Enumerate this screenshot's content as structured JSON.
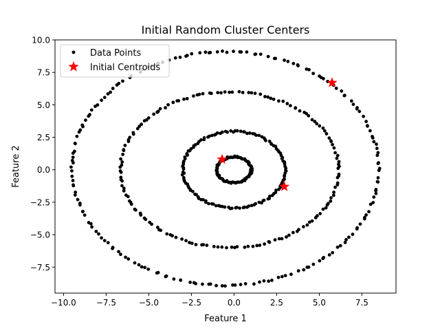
{
  "chart_data": {
    "type": "scatter",
    "title": "Initial Random Cluster Centers",
    "xlabel": "Feature 1",
    "ylabel": "Feature 2",
    "xlim": [
      -10.5,
      9.5
    ],
    "ylim": [
      -9.5,
      10.0
    ],
    "x_ticks": [
      -10.0,
      -7.5,
      -5.0,
      -2.5,
      0.0,
      2.5,
      5.0,
      7.5
    ],
    "x_tick_labels": [
      "−10.0",
      "−7.5",
      "−5.0",
      "−2.5",
      "0.0",
      "2.5",
      "5.0",
      "7.5"
    ],
    "y_ticks": [
      -7.5,
      -5.0,
      -2.5,
      0.0,
      2.5,
      5.0,
      7.5,
      10.0
    ],
    "y_tick_labels": [
      "−7.5",
      "−5.0",
      "−2.5",
      "0.0",
      "2.5",
      "5.0",
      "7.5",
      "10.0"
    ],
    "grid": false,
    "legend_position": "top-left",
    "series": [
      {
        "name": "Data Points",
        "marker": "dot",
        "color": "#000000",
        "rings": [
          {
            "center": [
              0.0,
              0.0
            ],
            "radius_x": 1.0,
            "radius_y": 1.0,
            "count": 90
          },
          {
            "center": [
              0.0,
              0.0
            ],
            "radius_x": 3.0,
            "radius_y": 2.95,
            "count": 130
          },
          {
            "center": [
              -0.25,
              0.0
            ],
            "radius_x": 6.4,
            "radius_y": 6.0,
            "count": 160
          },
          {
            "center": [
              -0.5,
              0.1
            ],
            "radius_x": 9.0,
            "radius_y": 9.0,
            "count": 190
          }
        ]
      },
      {
        "name": "Initial Centroids",
        "marker": "star",
        "color": "#ff0000",
        "points": [
          {
            "x": 5.75,
            "y": 6.7
          },
          {
            "x": -0.7,
            "y": 0.8
          },
          {
            "x": 2.95,
            "y": -1.3
          }
        ]
      }
    ]
  }
}
